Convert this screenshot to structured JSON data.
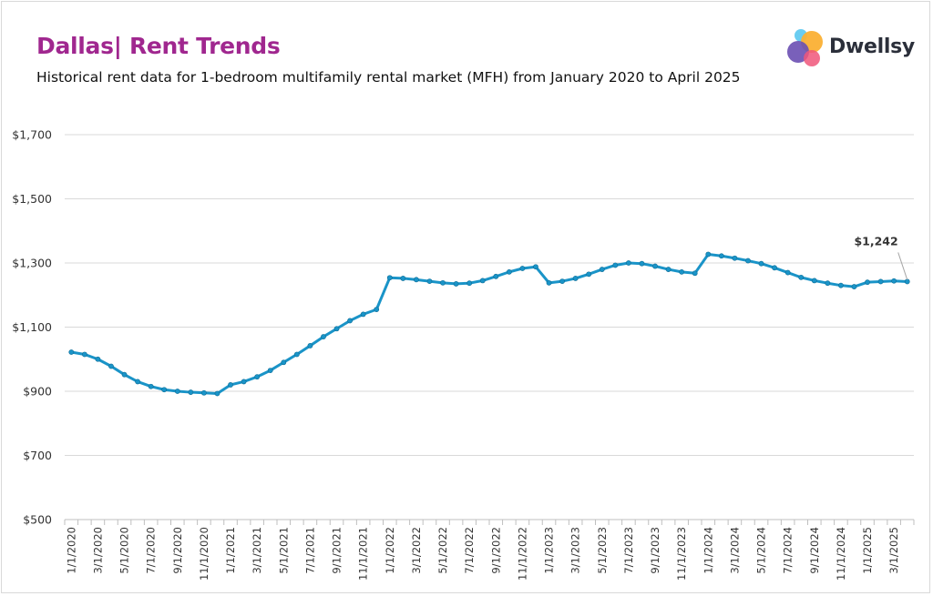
{
  "header": {
    "title": "Dallas| Rent Trends",
    "subtitle": "Historical rent data for 1-bedroom multifamily rental market (MFH) from January 2020 to April 2025"
  },
  "logo": {
    "name": "Dwellsy",
    "icon": "dwellsy-logo-icon"
  },
  "colors": {
    "line": "#1a94c8",
    "grid": "#d9d9d9",
    "title": "#a0278f",
    "axis_text": "#333333"
  },
  "chart_data": {
    "type": "line",
    "title": "Dallas| Rent Trends",
    "subtitle": "Historical rent data for 1-bedroom multifamily rental market (MFH) from January 2020 to April 2025",
    "xlabel": "",
    "ylabel": "",
    "ylim": [
      500,
      1700
    ],
    "yticks": [
      500,
      700,
      900,
      1100,
      1300,
      1500,
      1700
    ],
    "ytick_labels": [
      "$500",
      "$700",
      "$900",
      "$1,100",
      "$1,300",
      "$1,500",
      "$1,700"
    ],
    "xtick_labels": [
      "1/1/2020",
      "3/1/2020",
      "5/1/2020",
      "7/1/2020",
      "9/1/2020",
      "11/1/2020",
      "1/1/2021",
      "3/1/2021",
      "5/1/2021",
      "7/1/2021",
      "9/1/2021",
      "11/1/2021",
      "1/1/2022",
      "3/1/2022",
      "5/1/2022",
      "7/1/2022",
      "9/1/2022",
      "11/1/2022",
      "1/1/2023",
      "3/1/2023",
      "5/1/2023",
      "7/1/2023",
      "9/1/2023",
      "11/1/2023",
      "1/1/2024",
      "3/1/2024",
      "5/1/2024",
      "7/1/2024",
      "9/1/2024",
      "11/1/2024",
      "1/1/2025",
      "3/1/2025"
    ],
    "grid": true,
    "legend": "none",
    "series": [
      {
        "x_start": "2020-01-01",
        "frequency": "monthly",
        "values": [
          1022,
          1015,
          1000,
          978,
          952,
          930,
          915,
          905,
          900,
          897,
          895,
          893,
          920,
          930,
          945,
          965,
          990,
          1015,
          1042,
          1070,
          1095,
          1120,
          1140,
          1155,
          1254,
          1252,
          1248,
          1243,
          1238,
          1235,
          1237,
          1245,
          1258,
          1272,
          1283,
          1288,
          1238,
          1243,
          1252,
          1265,
          1280,
          1293,
          1300,
          1298,
          1290,
          1280,
          1272,
          1268,
          1327,
          1322,
          1315,
          1307,
          1298,
          1285,
          1270,
          1255,
          1245,
          1237,
          1230,
          1226,
          1240,
          1242,
          1244,
          1242
        ]
      }
    ],
    "annotations": [
      {
        "text": "$1,242",
        "x": "2025-04-01",
        "y": 1242
      }
    ]
  }
}
